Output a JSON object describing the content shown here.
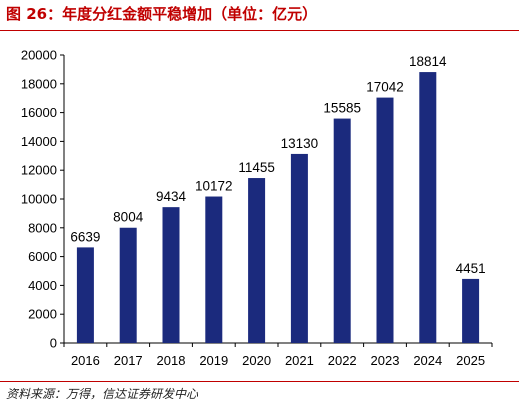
{
  "header": {
    "title": "图 26：年度分红金额平稳增加（单位：亿元）"
  },
  "footer": {
    "source": "资料来源：万得，信达证券研发中心"
  },
  "colors": {
    "accent": "#c00000",
    "bar": "#1b2a7d"
  },
  "chart_data": {
    "type": "bar",
    "title": "图 26：年度分红金额平稳增加（单位：亿元）",
    "xlabel": "",
    "ylabel": "",
    "categories": [
      "2016",
      "2017",
      "2018",
      "2019",
      "2020",
      "2021",
      "2022",
      "2023",
      "2024",
      "2025"
    ],
    "series": [
      {
        "values": [
          6639,
          8004,
          9434,
          10172,
          11455,
          13130,
          15585,
          17042,
          18814,
          4451
        ]
      }
    ],
    "ylim": [
      0,
      20000
    ],
    "yticks": [
      0,
      2000,
      4000,
      6000,
      8000,
      10000,
      12000,
      14000,
      16000,
      18000,
      20000
    ],
    "grid": false,
    "legend": "none"
  }
}
